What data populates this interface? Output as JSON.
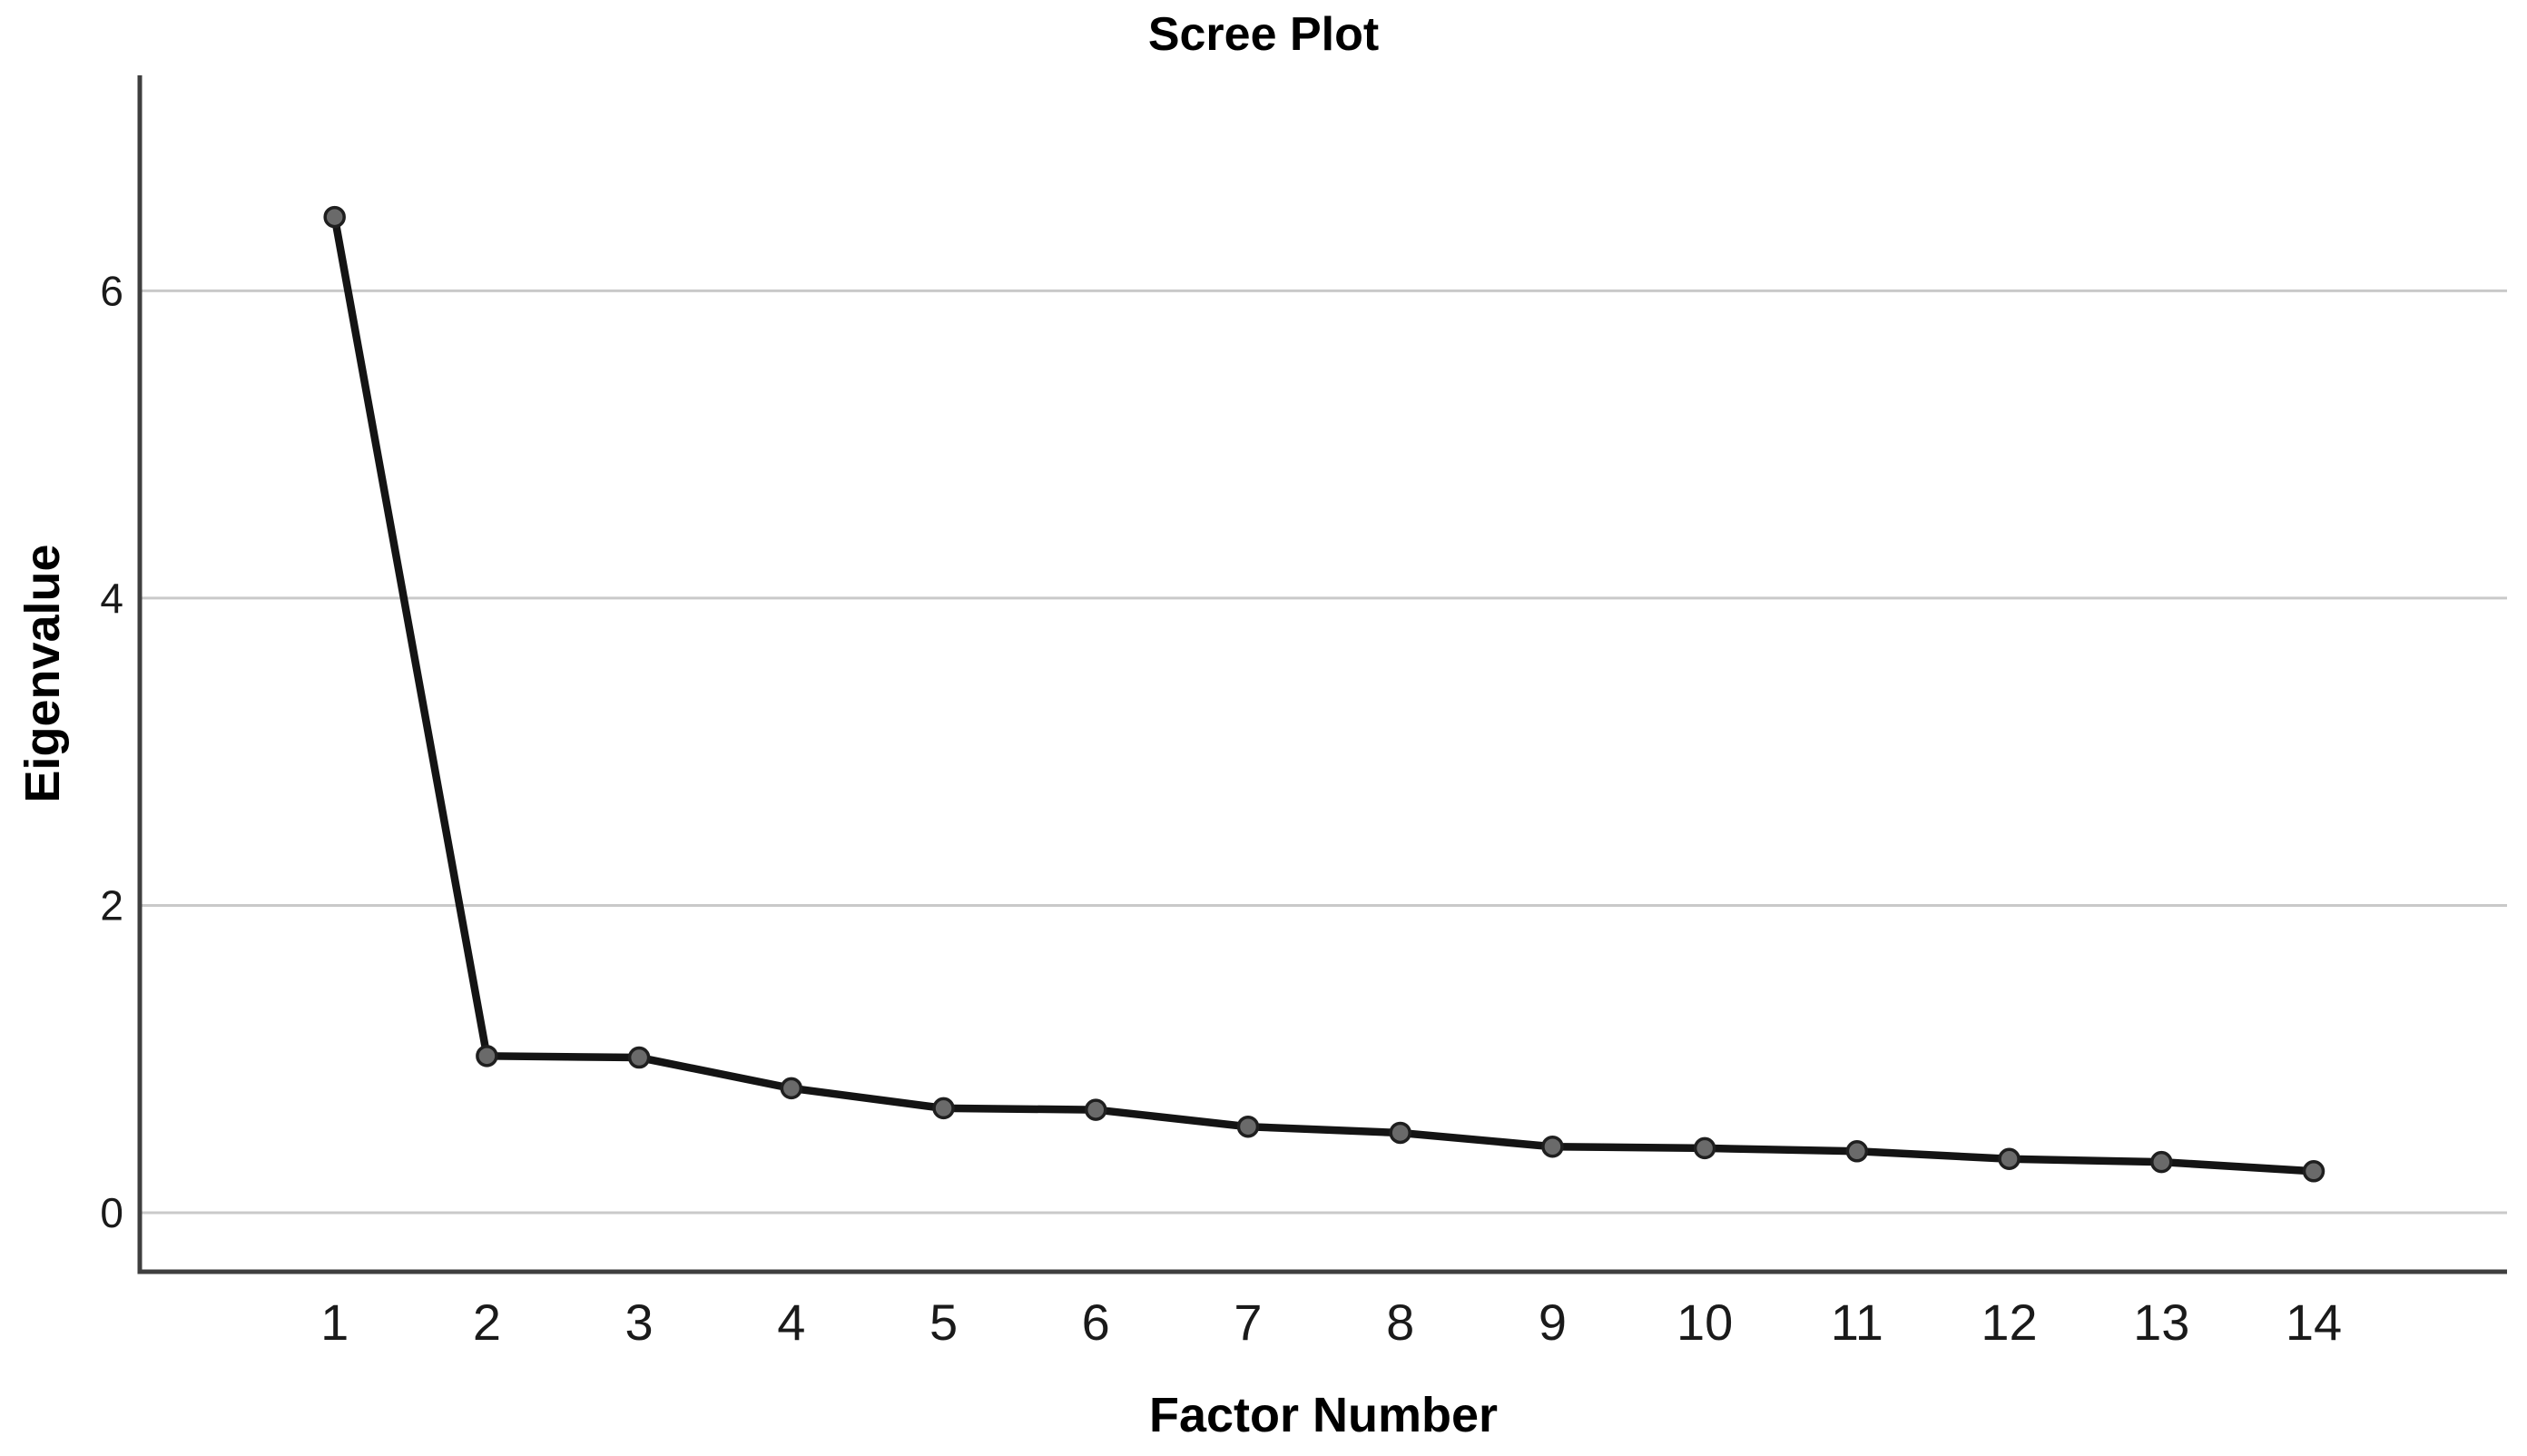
{
  "chart": {
    "title": "Scree Plot",
    "x_axis_label": "Factor Number",
    "y_axis_label": "Eigenvalue"
  },
  "chart_data": {
    "type": "line",
    "title": "Scree Plot",
    "xlabel": "Factor Number",
    "ylabel": "Eigenvalue",
    "categories": [
      1,
      2,
      3,
      4,
      5,
      6,
      7,
      8,
      9,
      10,
      11,
      12,
      13,
      14
    ],
    "values": [
      6.48,
      1.02,
      1.01,
      0.81,
      0.68,
      0.67,
      0.56,
      0.52,
      0.43,
      0.42,
      0.4,
      0.35,
      0.33,
      0.27
    ],
    "x_tick_labels": [
      "1",
      "2",
      "3",
      "4",
      "5",
      "6",
      "7",
      "8",
      "9",
      "10",
      "11",
      "12",
      "13",
      "14"
    ],
    "y_ticks": [
      0,
      2,
      4,
      6
    ],
    "xlim": [
      -0.28,
      15.27
    ],
    "ylim": [
      -0.384,
      7.402
    ],
    "grid": "horizontal-only",
    "legend": "none",
    "marker": "circle",
    "colors": {
      "line": "#141414",
      "marker_fill": "#6a6a6a",
      "marker_stroke": "#1f1f1f",
      "axis": "#3f3f3f",
      "grid": "#c9c9c9",
      "text": "#000000",
      "background": "#ffffff"
    }
  }
}
